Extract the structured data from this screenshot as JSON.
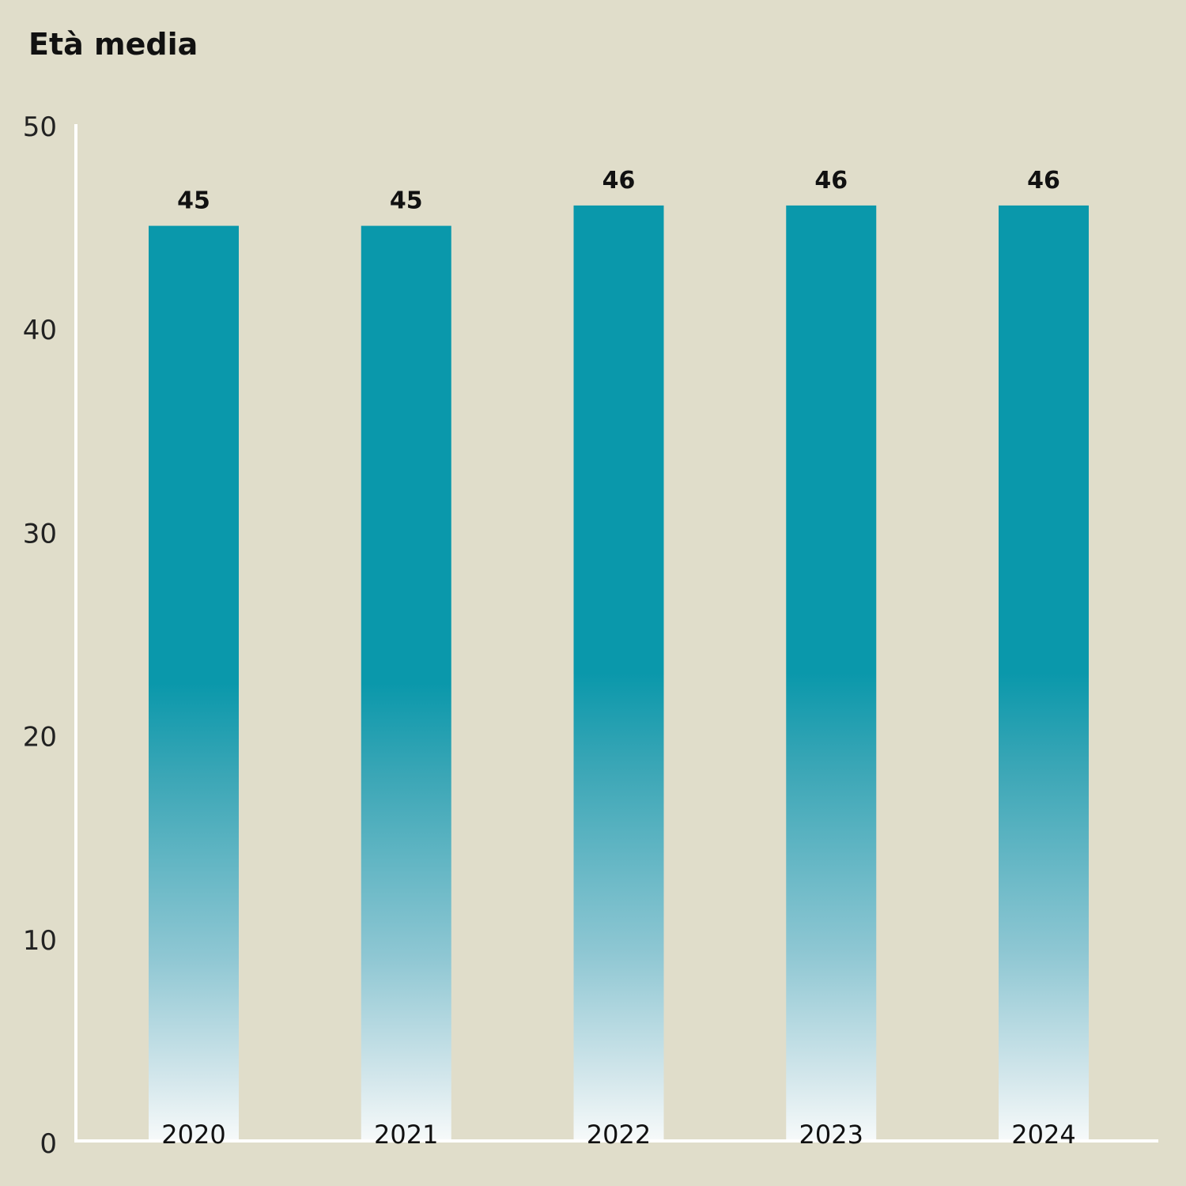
{
  "chart_data": {
    "type": "bar",
    "title": "Età media",
    "categories": [
      "2020",
      "2021",
      "2022",
      "2023",
      "2024"
    ],
    "values": [
      45,
      45,
      46,
      46,
      46
    ],
    "data_labels": [
      "45",
      "45",
      "46",
      "46",
      "46"
    ],
    "xlabel": "",
    "ylabel": "",
    "ylim": [
      0,
      50
    ],
    "yticks": [
      "0",
      "10",
      "20",
      "30",
      "40",
      "50"
    ],
    "grid": false,
    "colors": {
      "bar": "#0a98ab",
      "bar_fade": "#f7fafa",
      "background": "#e0ddca",
      "axis": "#ffffff"
    }
  }
}
